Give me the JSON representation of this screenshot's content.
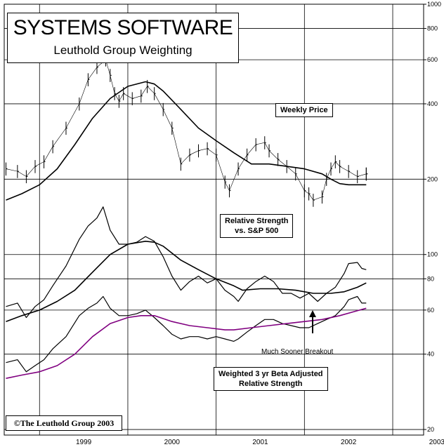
{
  "header": {
    "title": "SYSTEMS SOFTWARE",
    "subtitle": "Leuthold Group Weighting"
  },
  "labels": {
    "weekly_price": "Weekly Price",
    "rs_line1": "Relative Strength",
    "rs_line2": "vs. S&P 500",
    "weighted_line1": "Weighted 3 yr Beta Adjusted",
    "weighted_line2": "Relative Strength",
    "breakout": "Much Sooner Breakout"
  },
  "copyright": "©The Leuthold Group 2003",
  "colors": {
    "price": "#000000",
    "relative_strength": "#000000",
    "weighted": "#800080",
    "grid": "#000000"
  },
  "chart_data": {
    "type": "line",
    "x_axis": {
      "ticks": [
        "1999",
        "2000",
        "2001",
        "2002",
        "2003"
      ],
      "range": [
        1998.6,
        2003.35
      ]
    },
    "y_axis": {
      "scale": "log",
      "tick_labels": [
        "1000",
        "800",
        "600",
        "400",
        "200",
        "100",
        "80",
        "60",
        "40",
        "20"
      ],
      "tick_values": [
        1000,
        800,
        600,
        400,
        200,
        100,
        80,
        60,
        40,
        20
      ],
      "range": [
        19,
        1000
      ]
    },
    "grid": true,
    "series": [
      {
        "name": "Weekly Price",
        "style": "bars",
        "x": [
          1998.62,
          1998.75,
          1998.85,
          1998.95,
          1999.05,
          1999.15,
          1999.3,
          1999.45,
          1999.55,
          1999.65,
          1999.75,
          1999.8,
          1999.85,
          1999.9,
          1999.95,
          2000.05,
          2000.15,
          2000.22,
          2000.3,
          2000.4,
          2000.5,
          2000.6,
          2000.7,
          2000.8,
          2000.9,
          2001.0,
          2001.1,
          2001.15,
          2001.25,
          2001.35,
          2001.45,
          2001.55,
          2001.6,
          2001.7,
          2001.8,
          2001.9,
          2002.0,
          2002.05,
          2002.1,
          2002.2,
          2002.25,
          2002.3,
          2002.35,
          2002.4,
          2002.5,
          2002.6,
          2002.7,
          2002.7
        ],
        "values": [
          220,
          215,
          205,
          225,
          235,
          270,
          320,
          400,
          500,
          560,
          600,
          520,
          440,
          410,
          440,
          420,
          430,
          470,
          440,
          380,
          320,
          230,
          250,
          260,
          265,
          250,
          195,
          180,
          220,
          250,
          275,
          280,
          260,
          240,
          225,
          210,
          180,
          175,
          165,
          170,
          200,
          220,
          235,
          225,
          215,
          205,
          210,
          210
        ]
      },
      {
        "name": "Weekly Price moving average",
        "style": "line",
        "x": [
          1998.62,
          1998.8,
          1999.0,
          1999.2,
          1999.4,
          1999.6,
          1999.8,
          2000.0,
          2000.2,
          2000.3,
          2000.4,
          2000.6,
          2000.8,
          2001.0,
          2001.2,
          2001.4,
          2001.6,
          2001.8,
          2002.0,
          2002.2,
          2002.3,
          2002.4,
          2002.5,
          2002.6,
          2002.7
        ],
        "values": [
          165,
          175,
          190,
          220,
          275,
          350,
          420,
          470,
          490,
          480,
          450,
          380,
          320,
          285,
          255,
          230,
          230,
          225,
          220,
          210,
          200,
          192,
          190,
          190,
          190
        ]
      },
      {
        "name": "Relative Strength vs. S&P 500",
        "style": "line",
        "x": [
          1998.62,
          1998.75,
          1998.85,
          1998.95,
          1999.05,
          1999.15,
          1999.3,
          1999.45,
          1999.55,
          1999.65,
          1999.72,
          1999.8,
          1999.9,
          2000.0,
          2000.1,
          2000.2,
          2000.3,
          2000.4,
          2000.5,
          2000.6,
          2000.7,
          2000.8,
          2000.9,
          2001.0,
          2001.1,
          2001.2,
          2001.25,
          2001.35,
          2001.45,
          2001.55,
          2001.65,
          2001.75,
          2001.85,
          2001.95,
          2002.05,
          2002.15,
          2002.25,
          2002.35,
          2002.45,
          2002.5,
          2002.6,
          2002.65,
          2002.7
        ],
        "values": [
          62,
          64,
          56,
          62,
          66,
          75,
          90,
          115,
          130,
          140,
          155,
          125,
          110,
          110,
          112,
          118,
          113,
          98,
          82,
          72,
          78,
          82,
          77,
          80,
          72,
          68,
          65,
          73,
          78,
          82,
          78,
          70,
          70,
          67,
          70,
          65,
          70,
          74,
          84,
          92,
          93,
          88,
          87
        ]
      },
      {
        "name": "Relative Strength moving average",
        "style": "line",
        "x": [
          1998.62,
          1998.8,
          1999.0,
          1999.2,
          1999.4,
          1999.6,
          1999.8,
          2000.0,
          2000.2,
          2000.3,
          2000.4,
          2000.6,
          2000.8,
          2001.0,
          2001.2,
          2001.3,
          2001.5,
          2001.7,
          2001.9,
          2002.1,
          2002.3,
          2002.45,
          2002.6,
          2002.7
        ],
        "values": [
          54,
          57,
          60,
          65,
          72,
          85,
          100,
          110,
          113,
          112,
          108,
          95,
          87,
          80,
          75,
          72,
          73,
          73,
          72,
          70,
          70,
          71,
          74,
          77
        ]
      },
      {
        "name": "Weighted 3 yr Beta Adjusted Relative Strength",
        "style": "line",
        "x": [
          1998.62,
          1998.75,
          1998.85,
          1998.95,
          1999.05,
          1999.15,
          1999.3,
          1999.45,
          1999.55,
          1999.65,
          1999.72,
          1999.8,
          1999.9,
          2000.0,
          2000.1,
          2000.2,
          2000.3,
          2000.4,
          2000.5,
          2000.6,
          2000.7,
          2000.8,
          2000.9,
          2001.0,
          2001.1,
          2001.2,
          2001.25,
          2001.35,
          2001.45,
          2001.55,
          2001.65,
          2001.75,
          2001.85,
          2001.95,
          2002.05,
          2002.15,
          2002.25,
          2002.35,
          2002.45,
          2002.5,
          2002.6,
          2002.65,
          2002.7
        ],
        "values": [
          37,
          38,
          34,
          36,
          38,
          42,
          47,
          57,
          61,
          64,
          68,
          61,
          57,
          57,
          58,
          60,
          56,
          52,
          48,
          46,
          47,
          47,
          46,
          47,
          46,
          45,
          46,
          49,
          52,
          55,
          55,
          53,
          52,
          51,
          51,
          53,
          55,
          57,
          62,
          66,
          68,
          64,
          64
        ]
      },
      {
        "name": "Weighted moving average",
        "style": "line",
        "x": [
          1998.62,
          1998.8,
          1999.0,
          1999.2,
          1999.4,
          1999.6,
          1999.8,
          2000.0,
          2000.15,
          2000.3,
          2000.5,
          2000.7,
          2000.9,
          2001.1,
          2001.2,
          2001.4,
          2001.6,
          2001.8,
          2002.0,
          2002.2,
          2002.4,
          2002.55,
          2002.7
        ],
        "values": [
          32,
          33,
          34,
          36,
          40,
          47,
          53,
          56,
          57,
          57,
          54,
          52,
          51,
          50,
          50,
          51,
          52,
          53,
          54,
          55,
          57,
          59,
          61
        ]
      }
    ]
  }
}
